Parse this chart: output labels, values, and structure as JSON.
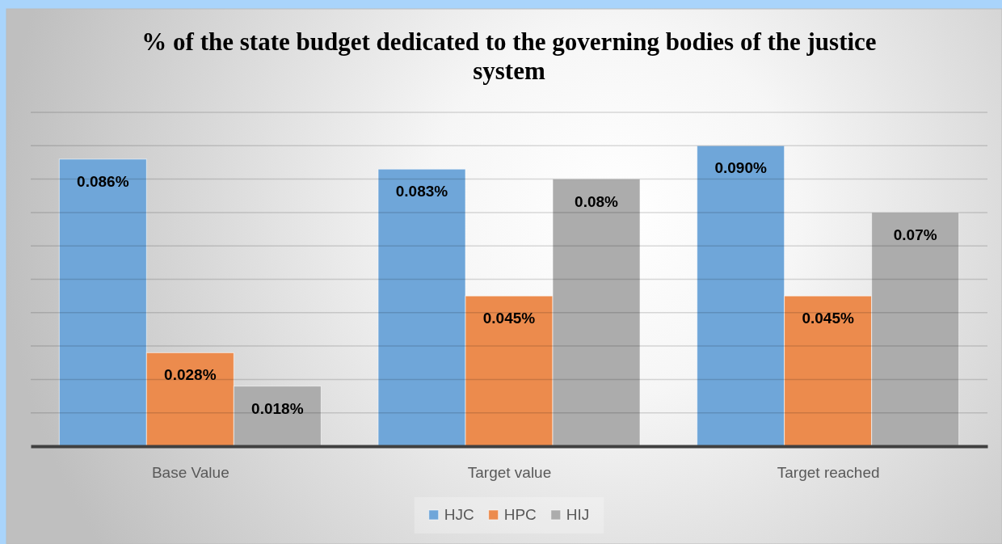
{
  "chart_data": {
    "type": "bar",
    "title": "% of the state budget dedicated to the governing bodies of the justice system",
    "categories": [
      "Base Value",
      "Target value",
      "Target reached"
    ],
    "series": [
      {
        "name": "HJC",
        "color": "#6fa6d9",
        "values": [
          0.086,
          0.083,
          0.09
        ],
        "value_labels": [
          "0.086%",
          "0.083%",
          "0.090%"
        ]
      },
      {
        "name": "HPC",
        "color": "#ec8b4d",
        "values": [
          0.028,
          0.045,
          0.045
        ],
        "value_labels": [
          "0.028%",
          "0.045%",
          "0.045%"
        ]
      },
      {
        "name": "HIJ",
        "color": "#acacac",
        "values": [
          0.018,
          0.08,
          0.07
        ],
        "value_labels": [
          "0.018%",
          "0.08%",
          "0.07%"
        ]
      }
    ],
    "ylim": [
      0,
      0.1
    ],
    "yticks": [
      {
        "value": 0,
        "label": null
      },
      {
        "value": 0.01,
        "label": null
      },
      {
        "value": 0.02,
        "label": null
      },
      {
        "value": 0.03,
        "label": null
      },
      {
        "value": 0.04,
        "label": null
      },
      {
        "value": 0.05,
        "label": null
      },
      {
        "value": 0.06,
        "label": null
      },
      {
        "value": 0.07,
        "label": null
      },
      {
        "value": 0.08,
        "label": null
      },
      {
        "value": 0.09,
        "label": null
      },
      {
        "value": 0.1,
        "label": null
      }
    ],
    "grid": "y",
    "legend": "bottom",
    "tick_labels": "x"
  }
}
